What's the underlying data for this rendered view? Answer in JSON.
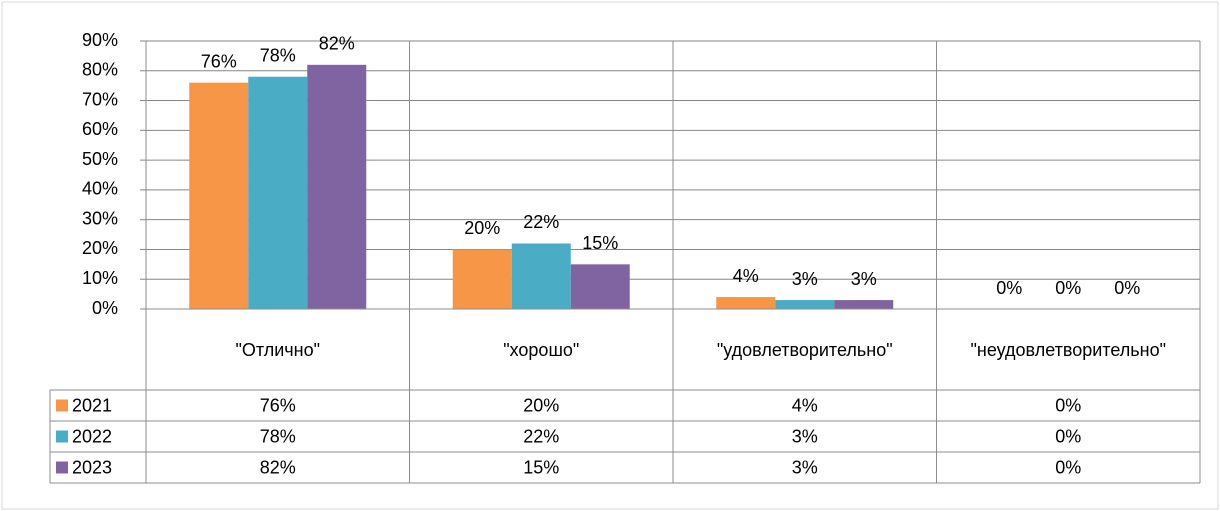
{
  "chart_data": {
    "type": "bar",
    "categories": [
      "\"Отлично\"",
      "\"хорошо\"",
      "\"удовлетворительно\"",
      "\"неудовлетворительно\""
    ],
    "series": [
      {
        "name": "2021",
        "color": "#f79646",
        "values": [
          76,
          20,
          4,
          0
        ],
        "value_labels": [
          "76%",
          "20%",
          "4%",
          "0%"
        ]
      },
      {
        "name": "2022",
        "color": "#4bacc6",
        "values": [
          78,
          22,
          3,
          0
        ],
        "value_labels": [
          "78%",
          "22%",
          "3%",
          "0%"
        ]
      },
      {
        "name": "2023",
        "color": "#8064a2",
        "values": [
          82,
          15,
          3,
          0
        ],
        "value_labels": [
          "82%",
          "15%",
          "3%",
          "0%"
        ]
      }
    ],
    "ylim": [
      0,
      90
    ],
    "yticks": [
      {
        "value": 0,
        "label": "0%"
      },
      {
        "value": 10,
        "label": "10%"
      },
      {
        "value": 20,
        "label": "20%"
      },
      {
        "value": 30,
        "label": "30%"
      },
      {
        "value": 40,
        "label": "40%"
      },
      {
        "value": 50,
        "label": "50%"
      },
      {
        "value": 60,
        "label": "60%"
      },
      {
        "value": 70,
        "label": "70%"
      },
      {
        "value": 80,
        "label": "80%"
      },
      {
        "value": 90,
        "label": "90%"
      }
    ],
    "grid": true,
    "data_table": true
  }
}
